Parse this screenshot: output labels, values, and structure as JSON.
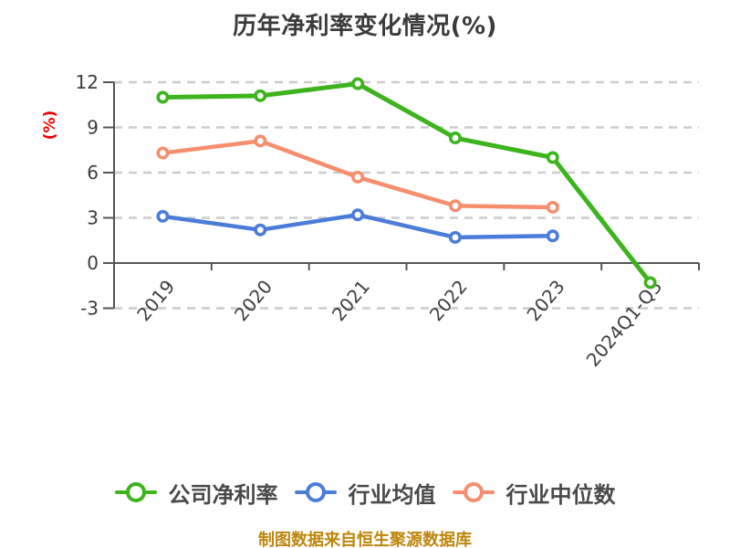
{
  "chart_data": {
    "type": "line",
    "title": "历年净利率变化情况(%)",
    "ylabel": "(%)",
    "xlabel": "",
    "categories": [
      "2019",
      "2020",
      "2021",
      "2022",
      "2023",
      "2024Q1-Q3"
    ],
    "series": [
      {
        "name": "公司净利率",
        "color": "#3db41d",
        "values": [
          11.0,
          11.1,
          11.9,
          8.3,
          7.0,
          -1.3
        ]
      },
      {
        "name": "行业均值",
        "color": "#4b7cd9",
        "values": [
          3.1,
          2.2,
          3.2,
          1.7,
          1.8,
          null
        ]
      },
      {
        "name": "行业中位数",
        "color": "#f68e6d",
        "values": [
          7.3,
          8.1,
          5.7,
          3.8,
          3.7,
          null
        ]
      }
    ],
    "yticks": [
      -3,
      0,
      3,
      6,
      9,
      12
    ],
    "ylim": [
      -3,
      12
    ],
    "grid": "horizontal-dashed",
    "legend_position": "bottom",
    "marker": "circle-white-fill"
  },
  "colors": {
    "ylabel_red": "#ee0000",
    "footer_gold": "#bd860d",
    "company_green": "#3db41d",
    "industry_avg_blue": "#4b7cd9",
    "industry_median_salmon": "#f68e6d"
  },
  "footer": {
    "source_note": "制图数据来自恒生聚源数据库"
  }
}
